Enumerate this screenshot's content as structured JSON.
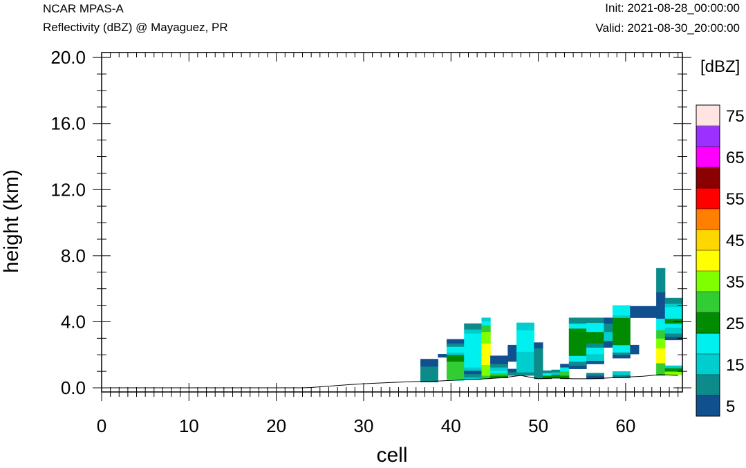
{
  "header": {
    "model": "NCAR MPAS-A",
    "field": "Reflectivity (dBZ) @ Mayaguez, PR",
    "init": "Init: 2021-08-28_00:00:00",
    "valid": "Valid: 2021-08-30_20:00:00"
  },
  "chart_data": {
    "type": "heatmap",
    "xlabel": "cell",
    "ylabel": "height (km)",
    "xlim": [
      0,
      66.5
    ],
    "ylim": [
      -0.25,
      20.3
    ],
    "xticks": [
      0,
      10,
      20,
      30,
      40,
      50,
      60
    ],
    "xtick_labels": [
      "0",
      "10",
      "20",
      "30",
      "40",
      "50",
      "60"
    ],
    "yticks": [
      0,
      4,
      8,
      12,
      16,
      20
    ],
    "ytick_labels": [
      "0.0",
      "4.0",
      "8.0",
      "12.0",
      "16.0",
      "20.0"
    ],
    "colorbar": {
      "title": "[dBZ]",
      "levels": [
        5,
        10,
        15,
        20,
        25,
        30,
        35,
        40,
        45,
        50,
        55,
        60,
        65,
        70,
        75
      ],
      "labels": [
        "5",
        "15",
        "25",
        "35",
        "45",
        "55",
        "65",
        "75"
      ],
      "colors": [
        "#10508f",
        "#0d8b8b",
        "#00cdcd",
        "#00f0f0",
        "#008b00",
        "#32cd32",
        "#7fff00",
        "#ffff00",
        "#ffd700",
        "#ff8000",
        "#ff0000",
        "#8b0000",
        "#ff00ff",
        "#9b30ff",
        "#ffe4e1"
      ]
    },
    "terrain": [
      [
        0,
        0
      ],
      [
        23,
        0
      ],
      [
        24,
        0.02
      ],
      [
        26,
        0.1
      ],
      [
        28,
        0.18
      ],
      [
        30,
        0.25
      ],
      [
        33,
        0.32
      ],
      [
        36,
        0.38
      ],
      [
        38,
        0.4
      ],
      [
        40,
        0.45
      ],
      [
        42,
        0.5
      ],
      [
        44,
        0.55
      ],
      [
        46,
        0.62
      ],
      [
        48,
        0.75
      ],
      [
        50,
        0.55
      ],
      [
        52,
        0.6
      ],
      [
        54,
        0.55
      ],
      [
        56,
        0.55
      ],
      [
        58,
        0.6
      ],
      [
        60,
        0.65
      ],
      [
        62,
        0.7
      ],
      [
        64,
        0.8
      ],
      [
        66,
        0.75
      ]
    ],
    "cells": [
      {
        "x": [
          36.5,
          38.5
        ],
        "bands": [
          [
            0.35,
            1.3,
            10
          ],
          [
            1.3,
            1.75,
            5
          ]
        ]
      },
      {
        "x": [
          38.5,
          39.5
        ],
        "bands": [
          [
            1.85,
            2.05,
            5
          ]
        ]
      },
      {
        "x": [
          39.5,
          41.5
        ],
        "bands": [
          [
            0.45,
            0.55,
            20
          ],
          [
            0.55,
            1.6,
            30
          ],
          [
            1.6,
            2.0,
            25
          ],
          [
            2.0,
            2.15,
            15
          ],
          [
            2.15,
            2.5,
            20
          ],
          [
            2.5,
            2.7,
            10
          ],
          [
            2.7,
            2.95,
            5
          ]
        ]
      },
      {
        "x": [
          41.5,
          43.5
        ],
        "bands": [
          [
            0.5,
            0.65,
            15
          ],
          [
            0.65,
            0.85,
            10
          ],
          [
            0.85,
            1.05,
            5
          ],
          [
            1.05,
            1.25,
            15
          ],
          [
            1.25,
            3.3,
            20
          ],
          [
            3.3,
            3.55,
            15
          ],
          [
            3.55,
            3.9,
            10
          ]
        ]
      },
      {
        "x": [
          43.5,
          44.5
        ],
        "bands": [
          [
            0.55,
            0.75,
            30
          ],
          [
            0.75,
            1.4,
            35
          ],
          [
            1.4,
            2.7,
            40
          ],
          [
            2.7,
            3.4,
            35
          ],
          [
            3.4,
            3.8,
            30
          ],
          [
            3.8,
            4.05,
            20
          ],
          [
            4.05,
            4.25,
            15
          ]
        ]
      },
      {
        "x": [
          44.5,
          46.5
        ],
        "bands": [
          [
            0.6,
            0.75,
            25
          ],
          [
            0.75,
            0.9,
            30
          ],
          [
            0.9,
            1.05,
            20
          ],
          [
            1.05,
            1.25,
            15
          ],
          [
            1.25,
            1.45,
            10
          ],
          [
            1.45,
            1.55,
            5
          ],
          [
            1.55,
            1.95,
            5
          ]
        ]
      },
      {
        "x": [
          46.5,
          47.5
        ],
        "bands": [
          [
            0.75,
            0.95,
            10
          ],
          [
            0.95,
            1.15,
            5
          ],
          [
            1.6,
            2.6,
            5
          ]
        ]
      },
      {
        "x": [
          47.5,
          49.5
        ],
        "bands": [
          [
            0.75,
            0.95,
            10
          ],
          [
            0.95,
            2.2,
            15
          ],
          [
            2.2,
            3.5,
            20
          ],
          [
            3.5,
            3.95,
            15
          ]
        ]
      },
      {
        "x": [
          49.5,
          50.5
        ],
        "bands": [
          [
            0.55,
            2.4,
            10
          ],
          [
            2.4,
            2.75,
            5
          ]
        ]
      },
      {
        "x": [
          50.5,
          51.5
        ],
        "bands": [
          [
            0.55,
            0.75,
            25
          ],
          [
            0.75,
            0.9,
            20
          ],
          [
            0.9,
            1.05,
            10
          ]
        ]
      },
      {
        "x": [
          51.5,
          52.5
        ],
        "bands": [
          [
            0.6,
            0.8,
            25
          ],
          [
            0.8,
            0.95,
            15
          ],
          [
            0.95,
            1.1,
            10
          ]
        ]
      },
      {
        "x": [
          52.5,
          53.5
        ],
        "bands": [
          [
            0.55,
            0.75,
            25
          ],
          [
            0.75,
            1.0,
            30
          ],
          [
            1.0,
            1.25,
            20
          ],
          [
            1.25,
            1.45,
            5
          ]
        ]
      },
      {
        "x": [
          53.5,
          55.5
        ],
        "bands": [
          [
            1.15,
            1.35,
            5
          ],
          [
            1.35,
            1.6,
            10
          ],
          [
            1.6,
            1.95,
            20
          ],
          [
            1.95,
            2.4,
            25
          ],
          [
            2.4,
            3.6,
            25
          ],
          [
            3.6,
            3.9,
            20
          ],
          [
            3.9,
            4.25,
            10
          ]
        ]
      },
      {
        "x": [
          55.5,
          57.5
        ],
        "bands": [
          [
            0.55,
            0.75,
            5
          ],
          [
            0.75,
            0.9,
            10
          ],
          [
            1.45,
            1.65,
            5
          ],
          [
            1.65,
            2.05,
            15
          ],
          [
            2.05,
            2.45,
            20
          ],
          [
            2.45,
            2.7,
            10
          ],
          [
            2.7,
            3.4,
            25
          ],
          [
            3.4,
            3.95,
            20
          ],
          [
            3.95,
            4.25,
            10
          ]
        ]
      },
      {
        "x": [
          57.5,
          58.5
        ],
        "bands": [
          [
            2.45,
            2.85,
            5
          ],
          [
            2.85,
            3.4,
            15
          ],
          [
            3.4,
            3.9,
            10
          ],
          [
            3.9,
            4.25,
            5
          ]
        ]
      },
      {
        "x": [
          58.5,
          60.5
        ],
        "bands": [
          [
            0.6,
            0.8,
            10
          ],
          [
            0.8,
            1.0,
            15
          ],
          [
            1.8,
            2.0,
            5
          ],
          [
            2.0,
            2.15,
            10
          ],
          [
            2.15,
            2.6,
            20
          ],
          [
            2.6,
            4.25,
            25
          ],
          [
            4.25,
            4.4,
            15
          ],
          [
            4.4,
            5.0,
            20
          ]
        ]
      },
      {
        "x": [
          60.5,
          61.5
        ],
        "bands": [
          [
            2.05,
            2.6,
            5
          ],
          [
            4.25,
            4.95,
            5
          ]
        ]
      },
      {
        "x": [
          61.5,
          63.5
        ],
        "bands": [
          [
            4.25,
            4.95,
            5
          ]
        ]
      },
      {
        "x": [
          63.5,
          64.5
        ],
        "bands": [
          [
            0.75,
            1.5,
            30
          ],
          [
            1.5,
            2.4,
            40
          ],
          [
            2.4,
            3.0,
            35
          ],
          [
            3.0,
            3.5,
            30
          ],
          [
            3.5,
            4.2,
            20
          ],
          [
            4.2,
            5.8,
            5
          ],
          [
            5.8,
            7.25,
            10
          ]
        ]
      },
      {
        "x": [
          64.5,
          66.5
        ],
        "bands": [
          [
            0.8,
            1.0,
            35
          ],
          [
            1.0,
            1.2,
            25
          ],
          [
            1.2,
            1.35,
            15
          ],
          [
            2.9,
            3.1,
            5
          ],
          [
            3.1,
            3.3,
            10
          ],
          [
            3.3,
            3.65,
            15
          ],
          [
            3.65,
            3.9,
            20
          ],
          [
            3.9,
            4.2,
            25
          ],
          [
            4.2,
            4.9,
            20
          ],
          [
            4.9,
            5.1,
            15
          ],
          [
            5.1,
            5.45,
            10
          ]
        ]
      }
    ]
  }
}
